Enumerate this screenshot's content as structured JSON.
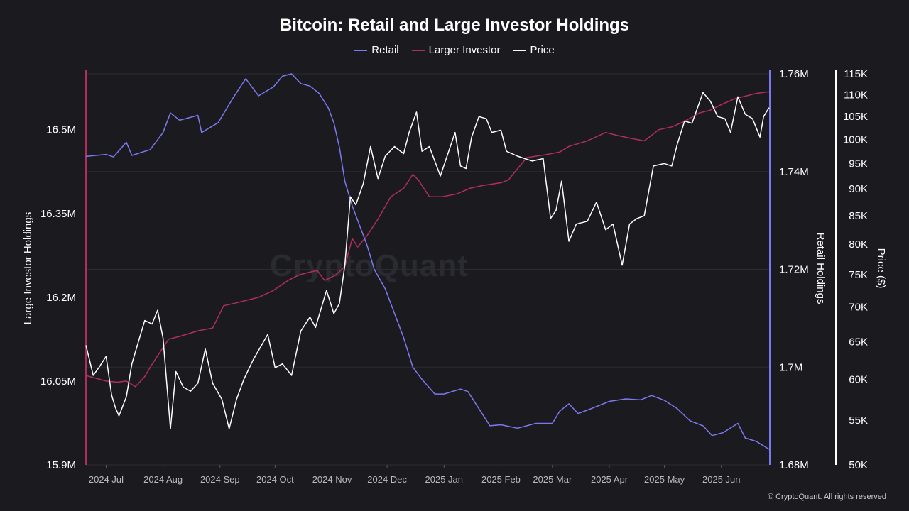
{
  "title": "Bitcoin: Retail and Large Investor Holdings",
  "watermark": "CryptoQuant",
  "credit": "© CryptoQuant. All rights reserved",
  "legend": [
    {
      "label": "Retail",
      "color": "#7b79f2"
    },
    {
      "label": "Larger Investor",
      "color": "#b02d5f"
    },
    {
      "label": "Price",
      "color": "#ffffff"
    }
  ],
  "chart_data": {
    "type": "line",
    "title": "Bitcoin: Retail and Large Investor Holdings",
    "x_start": "2024-06-20",
    "x_end": "2025-06-27",
    "x_ticks": [
      {
        "date": "2024-07-01",
        "label": "2024 Jul"
      },
      {
        "date": "2024-08-01",
        "label": "2024 Aug"
      },
      {
        "date": "2024-09-01",
        "label": "2024 Sep"
      },
      {
        "date": "2024-10-01",
        "label": "2024 Oct"
      },
      {
        "date": "2024-11-01",
        "label": "2024 Nov"
      },
      {
        "date": "2024-12-01",
        "label": "2024 Dec"
      },
      {
        "date": "2025-01-01",
        "label": "2025 Jan"
      },
      {
        "date": "2025-02-01",
        "label": "2025 Feb"
      },
      {
        "date": "2025-03-01",
        "label": "2025 Mar"
      },
      {
        "date": "2025-04-01",
        "label": "2025 Apr"
      },
      {
        "date": "2025-05-01",
        "label": "2025 May"
      },
      {
        "date": "2025-06-01",
        "label": "2025 Jun"
      }
    ],
    "axes": {
      "left": {
        "title": "Large Investor Holdings",
        "range": [
          15.9,
          16.6
        ],
        "ticks": [
          15.9,
          16.05,
          16.2,
          16.35,
          16.5
        ],
        "tick_labels": [
          "15.9M",
          "16.05M",
          "16.2M",
          "16.35M",
          "16.5M"
        ],
        "color": "#b02d5f"
      },
      "right1": {
        "title": "Retail Holdings",
        "range": [
          1.68,
          1.76
        ],
        "ticks": [
          1.68,
          1.7,
          1.72,
          1.74,
          1.76
        ],
        "tick_labels": [
          "1.68M",
          "1.7M",
          "1.72M",
          "1.74M",
          "1.76M"
        ],
        "color": "#7b79f2"
      },
      "right2": {
        "title": "Price ($)",
        "scale": "log",
        "range": [
          50000,
          115000
        ],
        "ticks": [
          50000,
          55000,
          60000,
          65000,
          70000,
          75000,
          80000,
          85000,
          90000,
          95000,
          100000,
          105000,
          110000,
          115000
        ],
        "tick_labels": [
          "50K",
          "55K",
          "60K",
          "65K",
          "70K",
          "75K",
          "80K",
          "85K",
          "90K",
          "95K",
          "100K",
          "105K",
          "110K",
          "115K"
        ],
        "color": "#ffffff"
      }
    },
    "series": [
      {
        "name": "Retail",
        "axis": "right1",
        "color": "#7b79f2",
        "points": [
          [
            "2024-06-20",
            1.7431
          ],
          [
            "2024-07-01",
            1.7435
          ],
          [
            "2024-07-05",
            1.743
          ],
          [
            "2024-07-12",
            1.746
          ],
          [
            "2024-07-15",
            1.7433
          ],
          [
            "2024-07-25",
            1.7445
          ],
          [
            "2024-08-01",
            1.748
          ],
          [
            "2024-08-05",
            1.752
          ],
          [
            "2024-08-10",
            1.7505
          ],
          [
            "2024-08-20",
            1.7515
          ],
          [
            "2024-08-22",
            1.748
          ],
          [
            "2024-08-31",
            1.75
          ],
          [
            "2024-09-08",
            1.755
          ],
          [
            "2024-09-15",
            1.759
          ],
          [
            "2024-09-22",
            1.7555
          ],
          [
            "2024-09-30",
            1.7573
          ],
          [
            "2024-10-05",
            1.7595
          ],
          [
            "2024-10-10",
            1.76
          ],
          [
            "2024-10-15",
            1.758
          ],
          [
            "2024-10-20",
            1.7575
          ],
          [
            "2024-10-25",
            1.756
          ],
          [
            "2024-10-30",
            1.753
          ],
          [
            "2024-11-02",
            1.75
          ],
          [
            "2024-11-05",
            1.745
          ],
          [
            "2024-11-08",
            1.738
          ],
          [
            "2024-11-12",
            1.733
          ],
          [
            "2024-11-16",
            1.729
          ],
          [
            "2024-11-20",
            1.725
          ],
          [
            "2024-11-24",
            1.72
          ],
          [
            "2024-11-30",
            1.716
          ],
          [
            "2024-12-05",
            1.711
          ],
          [
            "2024-12-10",
            1.706
          ],
          [
            "2024-12-15",
            1.7
          ],
          [
            "2024-12-20",
            1.6975
          ],
          [
            "2024-12-27",
            1.6945
          ],
          [
            "2025-01-01",
            1.6945
          ],
          [
            "2025-01-10",
            1.6955
          ],
          [
            "2025-01-14",
            1.695
          ],
          [
            "2025-01-20",
            1.6915
          ],
          [
            "2025-01-26",
            1.688
          ],
          [
            "2025-02-01",
            1.6882
          ],
          [
            "2025-02-10",
            1.6875
          ],
          [
            "2025-02-20",
            1.6885
          ],
          [
            "2025-03-01",
            1.6885
          ],
          [
            "2025-03-05",
            1.691
          ],
          [
            "2025-03-10",
            1.6925
          ],
          [
            "2025-03-15",
            1.6905
          ],
          [
            "2025-03-22",
            1.6915
          ],
          [
            "2025-04-01",
            1.693
          ],
          [
            "2025-04-10",
            1.6935
          ],
          [
            "2025-04-18",
            1.6933
          ],
          [
            "2025-04-24",
            1.6942
          ],
          [
            "2025-05-01",
            1.6932
          ],
          [
            "2025-05-08",
            1.6915
          ],
          [
            "2025-05-15",
            1.689
          ],
          [
            "2025-05-22",
            1.688
          ],
          [
            "2025-05-27",
            1.686
          ],
          [
            "2025-06-02",
            1.6866
          ],
          [
            "2025-06-10",
            1.6885
          ],
          [
            "2025-06-14",
            1.6855
          ],
          [
            "2025-06-20",
            1.6848
          ],
          [
            "2025-06-27",
            1.6832
          ]
        ]
      },
      {
        "name": "Larger Investor",
        "axis": "left",
        "color": "#b02d5f",
        "points": [
          [
            "2024-06-20",
            16.06
          ],
          [
            "2024-07-01",
            16.05
          ],
          [
            "2024-07-07",
            16.048
          ],
          [
            "2024-07-12",
            16.05
          ],
          [
            "2024-07-17",
            16.04
          ],
          [
            "2024-07-22",
            16.058
          ],
          [
            "2024-07-26",
            16.08
          ],
          [
            "2024-07-31",
            16.105
          ],
          [
            "2024-08-04",
            16.125
          ],
          [
            "2024-08-10",
            16.13
          ],
          [
            "2024-08-20",
            16.14
          ],
          [
            "2024-08-28",
            16.145
          ],
          [
            "2024-09-03",
            16.185
          ],
          [
            "2024-09-10",
            16.19
          ],
          [
            "2024-09-22",
            16.2
          ],
          [
            "2024-09-30",
            16.212
          ],
          [
            "2024-10-08",
            16.23
          ],
          [
            "2024-10-14",
            16.24
          ],
          [
            "2024-10-20",
            16.245
          ],
          [
            "2024-10-24",
            16.248
          ],
          [
            "2024-10-28",
            16.23
          ],
          [
            "2024-11-03",
            16.24
          ],
          [
            "2024-11-08",
            16.255
          ],
          [
            "2024-11-12",
            16.305
          ],
          [
            "2024-11-15",
            16.29
          ],
          [
            "2024-11-20",
            16.31
          ],
          [
            "2024-11-26",
            16.34
          ],
          [
            "2024-12-03",
            16.38
          ],
          [
            "2024-12-10",
            16.395
          ],
          [
            "2024-12-15",
            16.42
          ],
          [
            "2024-12-18",
            16.41
          ],
          [
            "2024-12-24",
            16.38
          ],
          [
            "2024-12-31",
            16.38
          ],
          [
            "2025-01-08",
            16.385
          ],
          [
            "2025-01-15",
            16.395
          ],
          [
            "2025-01-22",
            16.4
          ],
          [
            "2025-02-01",
            16.405
          ],
          [
            "2025-02-05",
            16.41
          ],
          [
            "2025-02-15",
            16.45
          ],
          [
            "2025-02-25",
            16.455
          ],
          [
            "2025-03-05",
            16.46
          ],
          [
            "2025-03-10",
            16.47
          ],
          [
            "2025-03-20",
            16.48
          ],
          [
            "2025-03-30",
            16.495
          ],
          [
            "2025-04-05",
            16.49
          ],
          [
            "2025-04-12",
            16.485
          ],
          [
            "2025-04-20",
            16.48
          ],
          [
            "2025-04-28",
            16.5
          ],
          [
            "2025-05-05",
            16.505
          ],
          [
            "2025-05-12",
            16.515
          ],
          [
            "2025-05-20",
            16.53
          ],
          [
            "2025-05-26",
            16.535
          ],
          [
            "2025-06-01",
            16.545
          ],
          [
            "2025-06-08",
            16.555
          ],
          [
            "2025-06-14",
            16.56
          ],
          [
            "2025-06-20",
            16.565
          ],
          [
            "2025-06-27",
            16.568
          ]
        ]
      },
      {
        "name": "Price",
        "axis": "right2",
        "color": "#ffffff",
        "points": [
          [
            "2024-06-20",
            64500
          ],
          [
            "2024-06-24",
            60500
          ],
          [
            "2024-06-27",
            61500
          ],
          [
            "2024-07-01",
            63000
          ],
          [
            "2024-07-04",
            58000
          ],
          [
            "2024-07-06",
            56500
          ],
          [
            "2024-07-08",
            55500
          ],
          [
            "2024-07-12",
            57800
          ],
          [
            "2024-07-15",
            62000
          ],
          [
            "2024-07-18",
            64500
          ],
          [
            "2024-07-22",
            68000
          ],
          [
            "2024-07-26",
            67500
          ],
          [
            "2024-07-29",
            69500
          ],
          [
            "2024-08-01",
            65500
          ],
          [
            "2024-08-05",
            54000
          ],
          [
            "2024-08-08",
            61000
          ],
          [
            "2024-08-12",
            59000
          ],
          [
            "2024-08-16",
            58500
          ],
          [
            "2024-08-20",
            59500
          ],
          [
            "2024-08-24",
            64000
          ],
          [
            "2024-08-28",
            59500
          ],
          [
            "2024-09-02",
            57500
          ],
          [
            "2024-09-06",
            54000
          ],
          [
            "2024-09-10",
            57500
          ],
          [
            "2024-09-14",
            60000
          ],
          [
            "2024-09-19",
            62500
          ],
          [
            "2024-09-27",
            66000
          ],
          [
            "2024-10-01",
            61500
          ],
          [
            "2024-10-05",
            62000
          ],
          [
            "2024-10-10",
            60500
          ],
          [
            "2024-10-15",
            66500
          ],
          [
            "2024-10-20",
            68500
          ],
          [
            "2024-10-23",
            67000
          ],
          [
            "2024-10-29",
            72500
          ],
          [
            "2024-11-02",
            69000
          ],
          [
            "2024-11-05",
            70500
          ],
          [
            "2024-11-08",
            76500
          ],
          [
            "2024-11-11",
            88500
          ],
          [
            "2024-11-14",
            87000
          ],
          [
            "2024-11-18",
            91000
          ],
          [
            "2024-11-22",
            98500
          ],
          [
            "2024-11-26",
            92000
          ],
          [
            "2024-11-30",
            96500
          ],
          [
            "2024-12-05",
            98500
          ],
          [
            "2024-12-10",
            97000
          ],
          [
            "2024-12-13",
            101500
          ],
          [
            "2024-12-17",
            106000
          ],
          [
            "2024-12-20",
            97500
          ],
          [
            "2024-12-24",
            98500
          ],
          [
            "2024-12-30",
            92500
          ],
          [
            "2025-01-04",
            98000
          ],
          [
            "2025-01-07",
            101500
          ],
          [
            "2025-01-10",
            94500
          ],
          [
            "2025-01-13",
            94000
          ],
          [
            "2025-01-16",
            100500
          ],
          [
            "2025-01-20",
            105000
          ],
          [
            "2025-01-24",
            104500
          ],
          [
            "2025-01-27",
            101500
          ],
          [
            "2025-02-01",
            102000
          ],
          [
            "2025-02-04",
            97500
          ],
          [
            "2025-02-10",
            96500
          ],
          [
            "2025-02-18",
            95500
          ],
          [
            "2025-02-24",
            96000
          ],
          [
            "2025-02-28",
            84500
          ],
          [
            "2025-03-03",
            86000
          ],
          [
            "2025-03-06",
            91500
          ],
          [
            "2025-03-10",
            80500
          ],
          [
            "2025-03-14",
            83500
          ],
          [
            "2025-03-20",
            84000
          ],
          [
            "2025-03-25",
            87500
          ],
          [
            "2025-03-30",
            82500
          ],
          [
            "2025-04-03",
            83500
          ],
          [
            "2025-04-08",
            76500
          ],
          [
            "2025-04-12",
            83500
          ],
          [
            "2025-04-16",
            84500
          ],
          [
            "2025-04-20",
            85000
          ],
          [
            "2025-04-25",
            94500
          ],
          [
            "2025-05-01",
            95000
          ],
          [
            "2025-05-05",
            94500
          ],
          [
            "2025-05-08",
            99000
          ],
          [
            "2025-05-12",
            104000
          ],
          [
            "2025-05-16",
            103500
          ],
          [
            "2025-05-22",
            110500
          ],
          [
            "2025-05-26",
            108500
          ],
          [
            "2025-05-30",
            105000
          ],
          [
            "2025-06-03",
            104500
          ],
          [
            "2025-06-06",
            101500
          ],
          [
            "2025-06-10",
            109500
          ],
          [
            "2025-06-14",
            105500
          ],
          [
            "2025-06-18",
            104500
          ],
          [
            "2025-06-22",
            100500
          ],
          [
            "2025-06-24",
            105000
          ],
          [
            "2025-06-27",
            107000
          ]
        ]
      }
    ]
  }
}
